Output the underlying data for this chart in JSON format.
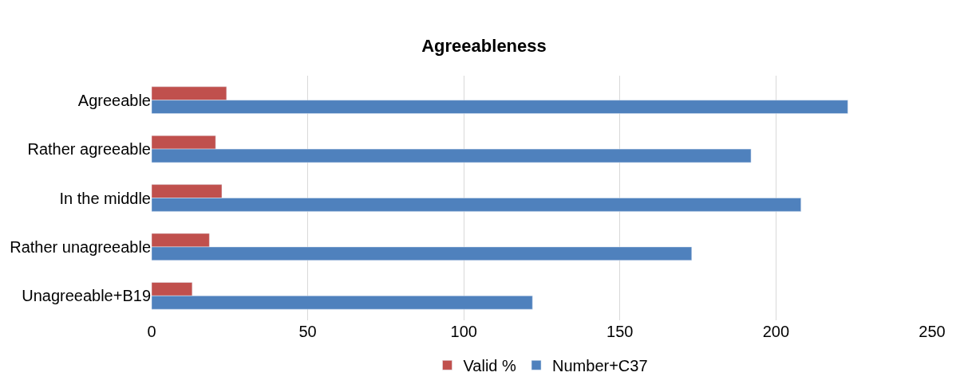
{
  "chart_data": {
    "type": "bar",
    "orientation": "horizontal",
    "title": "Agreeableness",
    "categories": [
      "Agreeable",
      "Rather agreeable",
      "In the middle",
      "Rather unagreeable",
      "Unagreeable+B19"
    ],
    "series": [
      {
        "name": "Valid %",
        "color": "#c0504d",
        "values": [
          24,
          20.5,
          22.5,
          18.5,
          13
        ]
      },
      {
        "name": "Number+C37",
        "color": "#4f81bd",
        "values": [
          223,
          192,
          208,
          173,
          122
        ]
      }
    ],
    "xlim": [
      0,
      250
    ],
    "xticks": [
      0,
      50,
      100,
      150,
      200,
      250
    ],
    "grid": "x",
    "legend": "bottom"
  }
}
